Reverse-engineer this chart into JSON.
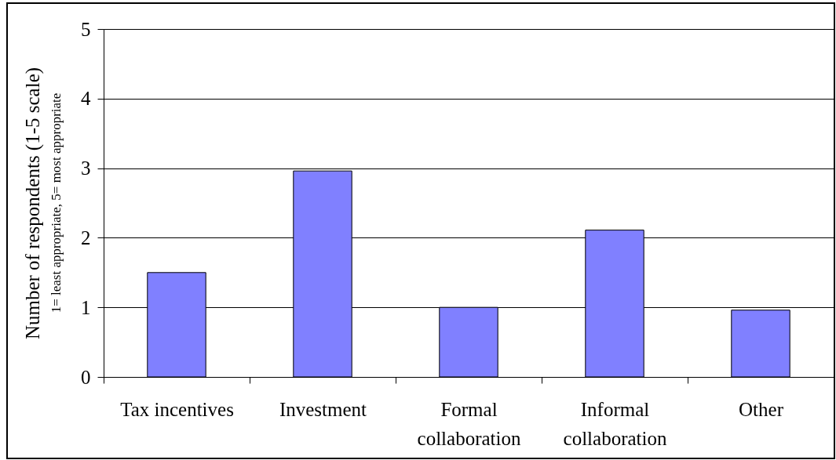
{
  "chart_data": {
    "type": "bar",
    "categories": [
      "Tax incentives",
      "Investment",
      "Formal collaboration",
      "Informal collaboration",
      "Other"
    ],
    "values": [
      1.5,
      2.96,
      1.0,
      2.11,
      0.96
    ],
    "color": "#8080ff",
    "ylabel": "Number of respondents  (1-5 scale)",
    "annotations": [
      "1= least appropriate, 5= most appropriate"
    ],
    "ylim": [
      0,
      5
    ],
    "yticks": [
      0,
      1,
      2,
      3,
      4,
      5
    ],
    "grid": "y"
  }
}
